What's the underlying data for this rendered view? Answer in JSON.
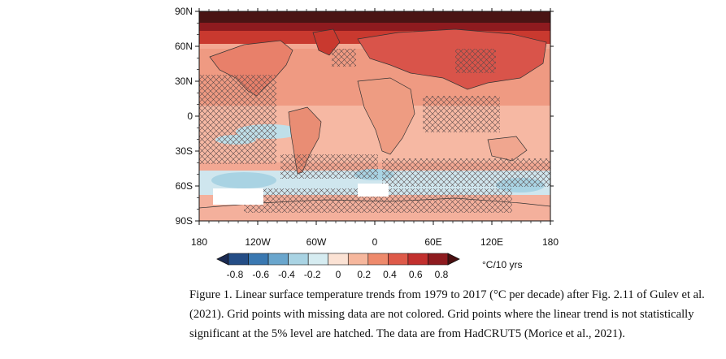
{
  "map": {
    "lat_labels": [
      "90N",
      "60N",
      "30N",
      "0",
      "30S",
      "60S",
      "90S"
    ],
    "lon_labels": [
      "180",
      "120W",
      "60W",
      "0",
      "60E",
      "120E",
      "180"
    ],
    "projection": "equirectangular",
    "coastlines": true,
    "hatching": "not statistically significant at 5% level",
    "missing_data": "white (not colored)"
  },
  "colorbar": {
    "unit": "°C/10 yrs",
    "ticks": [
      "-0.8",
      "-0.6",
      "-0.4",
      "-0.2",
      "0",
      "0.2",
      "0.4",
      "0.6",
      "0.8"
    ],
    "colors": [
      "#1b2a52",
      "#244d86",
      "#3a78b1",
      "#6aa6cd",
      "#a9d3e3",
      "#d6ecf1",
      "#fbe2d4",
      "#f6b79d",
      "#ee8a6c",
      "#de5a49",
      "#c2302e",
      "#8e1b1f",
      "#4a0f10"
    ]
  },
  "caption": {
    "line1": "Figure 1. Linear surface temperature trends from 1979 to 2017 (°C per decade) after Fig. 2.11 of Gulev et al.",
    "line2": "(2021). Grid points with missing data are not colored. Grid points where the linear trend is not statistically",
    "line3": "significant at the 5% level are hatched. The data are from HadCRUT5 (Morice et al., 2021)."
  }
}
